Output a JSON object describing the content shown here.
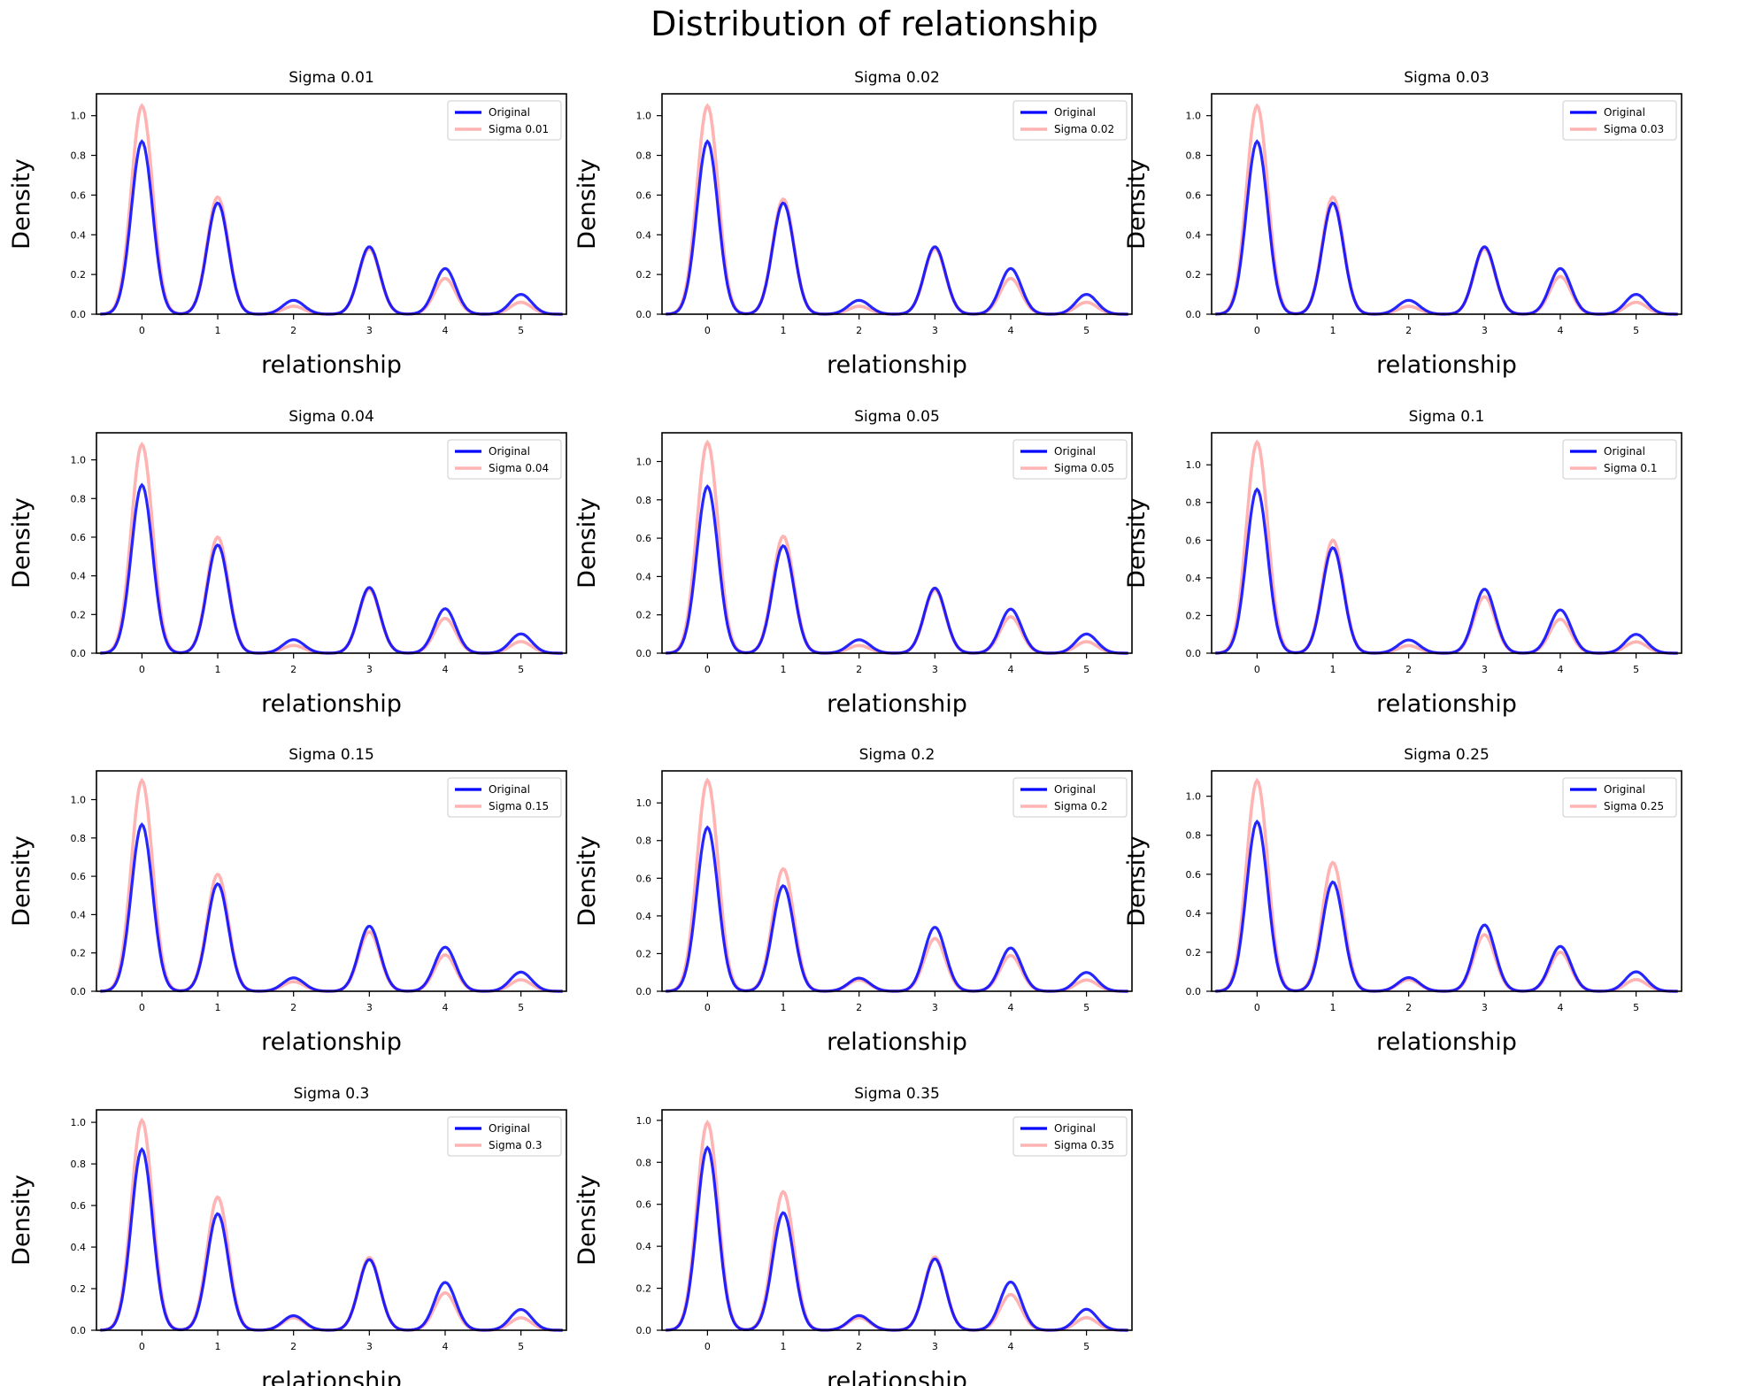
{
  "figure": {
    "title": "Distribution of relationship"
  },
  "colors": {
    "original": "#0000ff",
    "noisy": "#ffb3b3",
    "axis": "#000000"
  },
  "chart_data": [
    {
      "type": "line",
      "title": "Sigma 0.01",
      "xlabel": "relationship",
      "ylabel": "Density",
      "xlim": [
        -0.6,
        5.6
      ],
      "ylim": [
        0,
        1.11
      ],
      "x_ticks": [
        0,
        1,
        2,
        3,
        4,
        5
      ],
      "y_ticks": [
        0.0,
        0.2,
        0.4,
        0.6,
        0.8,
        1.0
      ],
      "legend": "top-right",
      "series": [
        {
          "name": "Original",
          "peaks": [
            0.87,
            0.56,
            0.07,
            0.34,
            0.23,
            0.1
          ]
        },
        {
          "name": "Sigma 0.01",
          "peaks": [
            1.05,
            0.59,
            0.04,
            0.33,
            0.18,
            0.06
          ]
        }
      ]
    },
    {
      "type": "line",
      "title": "Sigma 0.02",
      "xlabel": "relationship",
      "ylabel": "Density",
      "xlim": [
        -0.6,
        5.6
      ],
      "ylim": [
        0,
        1.11
      ],
      "x_ticks": [
        0,
        1,
        2,
        3,
        4,
        5
      ],
      "y_ticks": [
        0.0,
        0.2,
        0.4,
        0.6,
        0.8,
        1.0
      ],
      "legend": "top-right",
      "series": [
        {
          "name": "Original",
          "peaks": [
            0.87,
            0.56,
            0.07,
            0.34,
            0.23,
            0.1
          ]
        },
        {
          "name": "Sigma 0.02",
          "peaks": [
            1.05,
            0.58,
            0.04,
            0.33,
            0.18,
            0.06
          ]
        }
      ]
    },
    {
      "type": "line",
      "title": "Sigma 0.03",
      "xlabel": "relationship",
      "ylabel": "Density",
      "xlim": [
        -0.6,
        5.6
      ],
      "ylim": [
        0,
        1.11
      ],
      "x_ticks": [
        0,
        1,
        2,
        3,
        4,
        5
      ],
      "y_ticks": [
        0.0,
        0.2,
        0.4,
        0.6,
        0.8,
        1.0
      ],
      "legend": "top-right",
      "series": [
        {
          "name": "Original",
          "peaks": [
            0.87,
            0.56,
            0.07,
            0.34,
            0.23,
            0.1
          ]
        },
        {
          "name": "Sigma 0.03",
          "peaks": [
            1.05,
            0.59,
            0.04,
            0.33,
            0.19,
            0.06
          ]
        }
      ]
    },
    {
      "type": "line",
      "title": "Sigma 0.04",
      "xlabel": "relationship",
      "ylabel": "Density",
      "xlim": [
        -0.6,
        5.6
      ],
      "ylim": [
        0,
        1.14
      ],
      "x_ticks": [
        0,
        1,
        2,
        3,
        4,
        5
      ],
      "y_ticks": [
        0.0,
        0.2,
        0.4,
        0.6,
        0.8,
        1.0
      ],
      "legend": "top-right",
      "series": [
        {
          "name": "Original",
          "peaks": [
            0.87,
            0.56,
            0.07,
            0.34,
            0.23,
            0.1
          ]
        },
        {
          "name": "Sigma 0.04",
          "peaks": [
            1.08,
            0.6,
            0.04,
            0.33,
            0.18,
            0.06
          ]
        }
      ]
    },
    {
      "type": "line",
      "title": "Sigma 0.05",
      "xlabel": "relationship",
      "ylabel": "Density",
      "xlim": [
        -0.6,
        5.6
      ],
      "ylim": [
        0,
        1.15
      ],
      "x_ticks": [
        0,
        1,
        2,
        3,
        4,
        5
      ],
      "y_ticks": [
        0.0,
        0.2,
        0.4,
        0.6,
        0.8,
        1.0
      ],
      "legend": "top-right",
      "series": [
        {
          "name": "Original",
          "peaks": [
            0.87,
            0.56,
            0.07,
            0.34,
            0.23,
            0.1
          ]
        },
        {
          "name": "Sigma 0.05",
          "peaks": [
            1.1,
            0.61,
            0.04,
            0.33,
            0.19,
            0.06
          ]
        }
      ]
    },
    {
      "type": "line",
      "title": "Sigma 0.1",
      "xlabel": "relationship",
      "ylabel": "Density",
      "xlim": [
        -0.6,
        5.6
      ],
      "ylim": [
        0,
        1.17
      ],
      "x_ticks": [
        0,
        1,
        2,
        3,
        4,
        5
      ],
      "y_ticks": [
        0.0,
        0.2,
        0.4,
        0.6,
        0.8,
        1.0
      ],
      "legend": "top-right",
      "series": [
        {
          "name": "Original",
          "peaks": [
            0.87,
            0.56,
            0.07,
            0.34,
            0.23,
            0.1
          ]
        },
        {
          "name": "Sigma 0.1",
          "peaks": [
            1.12,
            0.6,
            0.04,
            0.3,
            0.18,
            0.06
          ]
        }
      ]
    },
    {
      "type": "line",
      "title": "Sigma 0.15",
      "xlabel": "relationship",
      "ylabel": "Density",
      "xlim": [
        -0.6,
        5.6
      ],
      "ylim": [
        0,
        1.15
      ],
      "x_ticks": [
        0,
        1,
        2,
        3,
        4,
        5
      ],
      "y_ticks": [
        0.0,
        0.2,
        0.4,
        0.6,
        0.8,
        1.0
      ],
      "legend": "top-right",
      "series": [
        {
          "name": "Original",
          "peaks": [
            0.87,
            0.56,
            0.07,
            0.34,
            0.23,
            0.1
          ]
        },
        {
          "name": "Sigma 0.15",
          "peaks": [
            1.1,
            0.61,
            0.05,
            0.31,
            0.19,
            0.06
          ]
        }
      ]
    },
    {
      "type": "line",
      "title": "Sigma 0.2",
      "xlabel": "relationship",
      "ylabel": "Density",
      "xlim": [
        -0.6,
        5.6
      ],
      "ylim": [
        0,
        1.17
      ],
      "x_ticks": [
        0,
        1,
        2,
        3,
        4,
        5
      ],
      "y_ticks": [
        0.0,
        0.2,
        0.4,
        0.6,
        0.8,
        1.0
      ],
      "legend": "top-right",
      "series": [
        {
          "name": "Original",
          "peaks": [
            0.87,
            0.56,
            0.07,
            0.34,
            0.23,
            0.1
          ]
        },
        {
          "name": "Sigma 0.2",
          "peaks": [
            1.12,
            0.65,
            0.06,
            0.28,
            0.19,
            0.06
          ]
        }
      ]
    },
    {
      "type": "line",
      "title": "Sigma 0.25",
      "xlabel": "relationship",
      "ylabel": "Density",
      "xlim": [
        -0.6,
        5.6
      ],
      "ylim": [
        0,
        1.13
      ],
      "x_ticks": [
        0,
        1,
        2,
        3,
        4,
        5
      ],
      "y_ticks": [
        0.0,
        0.2,
        0.4,
        0.6,
        0.8,
        1.0
      ],
      "legend": "top-right",
      "series": [
        {
          "name": "Original",
          "peaks": [
            0.87,
            0.56,
            0.07,
            0.34,
            0.23,
            0.1
          ]
        },
        {
          "name": "Sigma 0.25",
          "peaks": [
            1.08,
            0.66,
            0.06,
            0.29,
            0.2,
            0.06
          ]
        }
      ]
    },
    {
      "type": "line",
      "title": "Sigma 0.3",
      "xlabel": "relationship",
      "ylabel": "Density",
      "xlim": [
        -0.6,
        5.6
      ],
      "ylim": [
        0,
        1.06
      ],
      "x_ticks": [
        0,
        1,
        2,
        3,
        4,
        5
      ],
      "y_ticks": [
        0.0,
        0.2,
        0.4,
        0.6,
        0.8,
        1.0
      ],
      "legend": "top-right",
      "series": [
        {
          "name": "Original",
          "peaks": [
            0.87,
            0.56,
            0.07,
            0.34,
            0.23,
            0.1
          ]
        },
        {
          "name": "Sigma 0.3",
          "peaks": [
            1.01,
            0.64,
            0.06,
            0.35,
            0.18,
            0.06
          ]
        }
      ]
    },
    {
      "type": "line",
      "title": "Sigma 0.35",
      "xlabel": "relationship",
      "ylabel": "Density",
      "xlim": [
        -0.6,
        5.6
      ],
      "ylim": [
        0,
        1.05
      ],
      "x_ticks": [
        0,
        1,
        2,
        3,
        4,
        5
      ],
      "y_ticks": [
        0.0,
        0.2,
        0.4,
        0.6,
        0.8,
        1.0
      ],
      "legend": "top-right",
      "series": [
        {
          "name": "Original",
          "peaks": [
            0.87,
            0.56,
            0.07,
            0.34,
            0.23,
            0.1
          ]
        },
        {
          "name": "Sigma 0.35",
          "peaks": [
            0.99,
            0.66,
            0.06,
            0.35,
            0.17,
            0.06
          ]
        }
      ]
    }
  ]
}
